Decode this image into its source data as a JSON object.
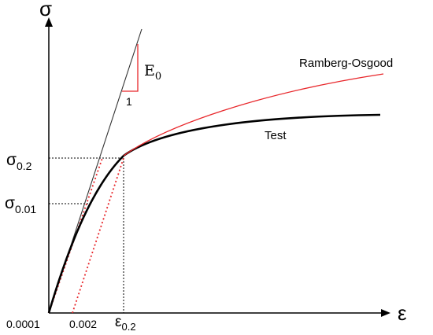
{
  "axes": {
    "y_symbol": "σ",
    "x_symbol": "ε"
  },
  "stress_levels": {
    "sigma_02_base": "σ",
    "sigma_02_sub": "0.2",
    "sigma_001_base": "σ",
    "sigma_001_sub": "0.01"
  },
  "strain_levels": {
    "tick_0001": "0.0001",
    "tick_0002": "0.002",
    "eps_02_base": "ε",
    "eps_02_sub": "0.2"
  },
  "modulus": {
    "label_base": "E",
    "label_sub": "0",
    "slope_run": "1"
  },
  "curves": {
    "ramberg_osgood": "Ramberg-Osgood",
    "test": "Test"
  },
  "colors": {
    "test_curve": "#000000",
    "ramberg_osgood_curve": "#e8262a",
    "offset_lines": "#e8262a",
    "tangent_line": "#333333"
  }
}
